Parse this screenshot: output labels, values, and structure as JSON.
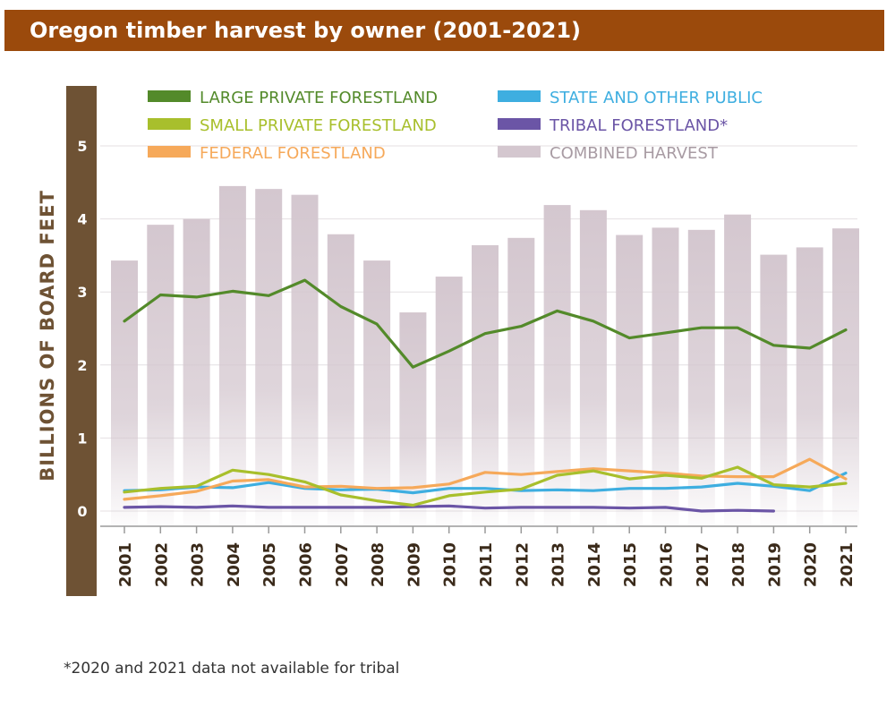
{
  "title": "Oregon timber harvest by owner (2001-2021)",
  "footnote": "*2020 and 2021 data not available for tribal",
  "chart_data": {
    "type": "bar",
    "categories": [
      "2001",
      "2002",
      "2003",
      "2004",
      "2005",
      "2006",
      "2007",
      "2008",
      "2009",
      "2010",
      "2011",
      "2012",
      "2013",
      "2014",
      "2015",
      "2016",
      "2017",
      "2018",
      "2019",
      "2020",
      "2021"
    ],
    "ylabel": "BILLIONS OF BOARD FEET",
    "xlabel": "",
    "ylim": [
      0,
      5.5
    ],
    "yticks": [
      0,
      1,
      2,
      3,
      4,
      5
    ],
    "grid": true,
    "legend_position": "top",
    "bars": {
      "name": "COMBINED HARVEST",
      "color": "#d4c7cf",
      "values": [
        3.43,
        3.92,
        4.0,
        4.45,
        4.41,
        4.33,
        3.79,
        3.43,
        2.72,
        3.21,
        3.64,
        3.74,
        4.19,
        4.12,
        3.78,
        3.88,
        3.85,
        4.06,
        3.51,
        3.61,
        3.87
      ]
    },
    "series": [
      {
        "name": "LARGE PRIVATE FORESTLAND",
        "color": "#538a2a",
        "values": [
          2.6,
          2.96,
          2.93,
          3.01,
          2.95,
          3.16,
          2.8,
          2.56,
          1.97,
          2.19,
          2.43,
          2.53,
          2.74,
          2.6,
          2.37,
          2.44,
          2.51,
          2.51,
          2.27,
          2.23,
          2.48
        ]
      },
      {
        "name": "SMALL PRIVATE FORESTLAND",
        "color": "#a8bf2c",
        "values": [
          0.26,
          0.31,
          0.34,
          0.56,
          0.5,
          0.4,
          0.22,
          0.14,
          0.08,
          0.21,
          0.26,
          0.3,
          0.49,
          0.55,
          0.44,
          0.49,
          0.45,
          0.6,
          0.36,
          0.33,
          0.38
        ]
      },
      {
        "name": "FEDERAL FORESTLAND",
        "color": "#f6a95a",
        "values": [
          0.16,
          0.21,
          0.27,
          0.41,
          0.43,
          0.33,
          0.34,
          0.31,
          0.32,
          0.37,
          0.53,
          0.5,
          0.54,
          0.58,
          0.55,
          0.52,
          0.48,
          0.47,
          0.47,
          0.71,
          0.44
        ]
      },
      {
        "name": "STATE AND OTHER PUBLIC",
        "color": "#3eaee0",
        "values": [
          0.28,
          0.29,
          0.33,
          0.32,
          0.39,
          0.31,
          0.29,
          0.3,
          0.25,
          0.31,
          0.31,
          0.28,
          0.29,
          0.28,
          0.31,
          0.31,
          0.33,
          0.38,
          0.34,
          0.28,
          0.52
        ]
      },
      {
        "name": "TRIBAL FORESTLAND*",
        "color": "#6b55a6",
        "values": [
          0.05,
          0.06,
          0.05,
          0.07,
          0.05,
          0.05,
          0.05,
          0.05,
          0.06,
          0.07,
          0.04,
          0.05,
          0.05,
          0.05,
          0.04,
          0.05,
          0.0,
          0.01,
          0.0,
          null,
          null
        ]
      }
    ],
    "legend": [
      {
        "label": "LARGE PRIVATE FORESTLAND",
        "color": "#538a2a"
      },
      {
        "label": "SMALL PRIVATE FORESTLAND",
        "color": "#a8bf2c"
      },
      {
        "label": "FEDERAL FORESTLAND",
        "color": "#f6a95a"
      },
      {
        "label": "STATE AND OTHER PUBLIC",
        "color": "#3eaee0"
      },
      {
        "label": "TRIBAL FORESTLAND*",
        "color": "#6b55a6"
      },
      {
        "label": "COMBINED HARVEST",
        "color": "#a89ba3"
      }
    ]
  }
}
